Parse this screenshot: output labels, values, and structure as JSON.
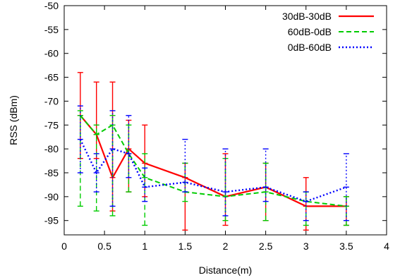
{
  "chart_data": {
    "type": "line",
    "title": "",
    "xlabel": "Distance(m)",
    "ylabel": "RSS (dBm)",
    "xlim": [
      0,
      4
    ],
    "ylim": [
      -98,
      -50
    ],
    "xticks": [
      0,
      0.5,
      1,
      1.5,
      2,
      2.5,
      3,
      3.5,
      4
    ],
    "xtick_labels": [
      "0",
      "0.5",
      "1",
      "1.5",
      "2",
      "2.5",
      "3",
      "3.5",
      "4"
    ],
    "yticks": [
      -95,
      -90,
      -85,
      -80,
      -75,
      -70,
      -65,
      -60,
      -55,
      -50
    ],
    "ytick_labels": [
      "-95",
      "-90",
      "-85",
      "-80",
      "-75",
      "-70",
      "-65",
      "-60",
      "-55",
      "-50"
    ],
    "grid": false,
    "legend_position": "top-right",
    "x": [
      0.2,
      0.4,
      0.6,
      0.8,
      1,
      1.5,
      2,
      2.5,
      3,
      3.5
    ],
    "series": [
      {
        "name": "30dB-30dB",
        "color": "#ff0000",
        "dash": "solid",
        "values": [
          -73,
          -77,
          -86,
          -80,
          -83,
          -86,
          -90,
          -88,
          -92,
          -92
        ],
        "err_low": [
          -82,
          -82,
          -93,
          -89,
          -90,
          -97,
          -96,
          -95,
          -97,
          -96
        ],
        "err_high": [
          -64,
          -66,
          -66,
          -74,
          -75,
          -83,
          -81,
          -83,
          -86,
          -90
        ]
      },
      {
        "name": "60dB-0dB",
        "color": "#00cc00",
        "dash": "dashed",
        "values": [
          -73,
          -77,
          -75,
          -81,
          -86,
          -89,
          -90,
          -89,
          -91,
          -92
        ],
        "err_low": [
          -92,
          -93,
          -94,
          -89,
          -96,
          -91,
          -95,
          -95,
          -96,
          -96
        ],
        "err_high": [
          -72,
          -75,
          -73,
          -75,
          -81,
          -83,
          -82,
          -83,
          -89,
          -90
        ]
      },
      {
        "name": "0dB-60dB",
        "color": "#0000ff",
        "dash": "dotted",
        "values": [
          -78,
          -85,
          -80,
          -81,
          -88,
          -87,
          -89,
          -88,
          -91,
          -88
        ],
        "err_low": [
          -85,
          -89,
          -92,
          -86,
          -91,
          -89,
          -94,
          -91,
          -95,
          -95
        ],
        "err_high": [
          -71,
          -81,
          -72,
          -73,
          -84,
          -78,
          -80,
          -80,
          -89,
          -81
        ]
      }
    ]
  }
}
